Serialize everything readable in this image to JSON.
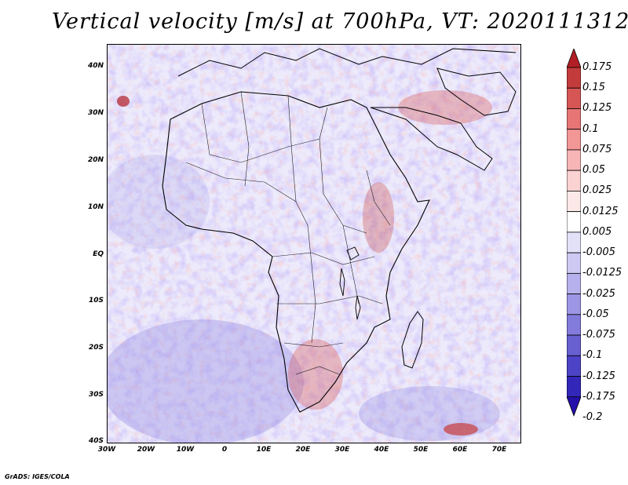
{
  "title": "Vertical velocity [m/s] at 700hPa, VT: 2020111312",
  "credit": "GrADS: IGES/COLA",
  "map": {
    "region": "Africa",
    "lat_labels": [
      "40N",
      "30N",
      "20N",
      "10N",
      "EQ",
      "10S",
      "20S",
      "30S",
      "40S"
    ],
    "lon_labels": [
      "30W",
      "20W",
      "10W",
      "0",
      "10E",
      "20E",
      "30E",
      "40E",
      "50E",
      "60E",
      "70E"
    ],
    "lat_range": [
      -40,
      45
    ],
    "lon_range": [
      -30,
      75
    ]
  },
  "colorbar": {
    "labels": [
      "0.175",
      "0.15",
      "0.125",
      "0.1",
      "0.075",
      "0.05",
      "0.025",
      "0.0125",
      "0.005",
      "-0.005",
      "-0.0125",
      "-0.025",
      "-0.05",
      "-0.075",
      "-0.1",
      "-0.125",
      "-0.175",
      "-0.2"
    ],
    "colors": [
      "#b21e25",
      "#c43b3b",
      "#d65555",
      "#e77575",
      "#f29696",
      "#f7b5b5",
      "#fbd2d2",
      "#fde8e8",
      "#ffffff",
      "#e3e1f8",
      "#cdc9f2",
      "#b6b0ec",
      "#9d96e4",
      "#837bdb",
      "#685fd1",
      "#4d43c6",
      "#3327ba",
      "#2610aa"
    ]
  }
}
